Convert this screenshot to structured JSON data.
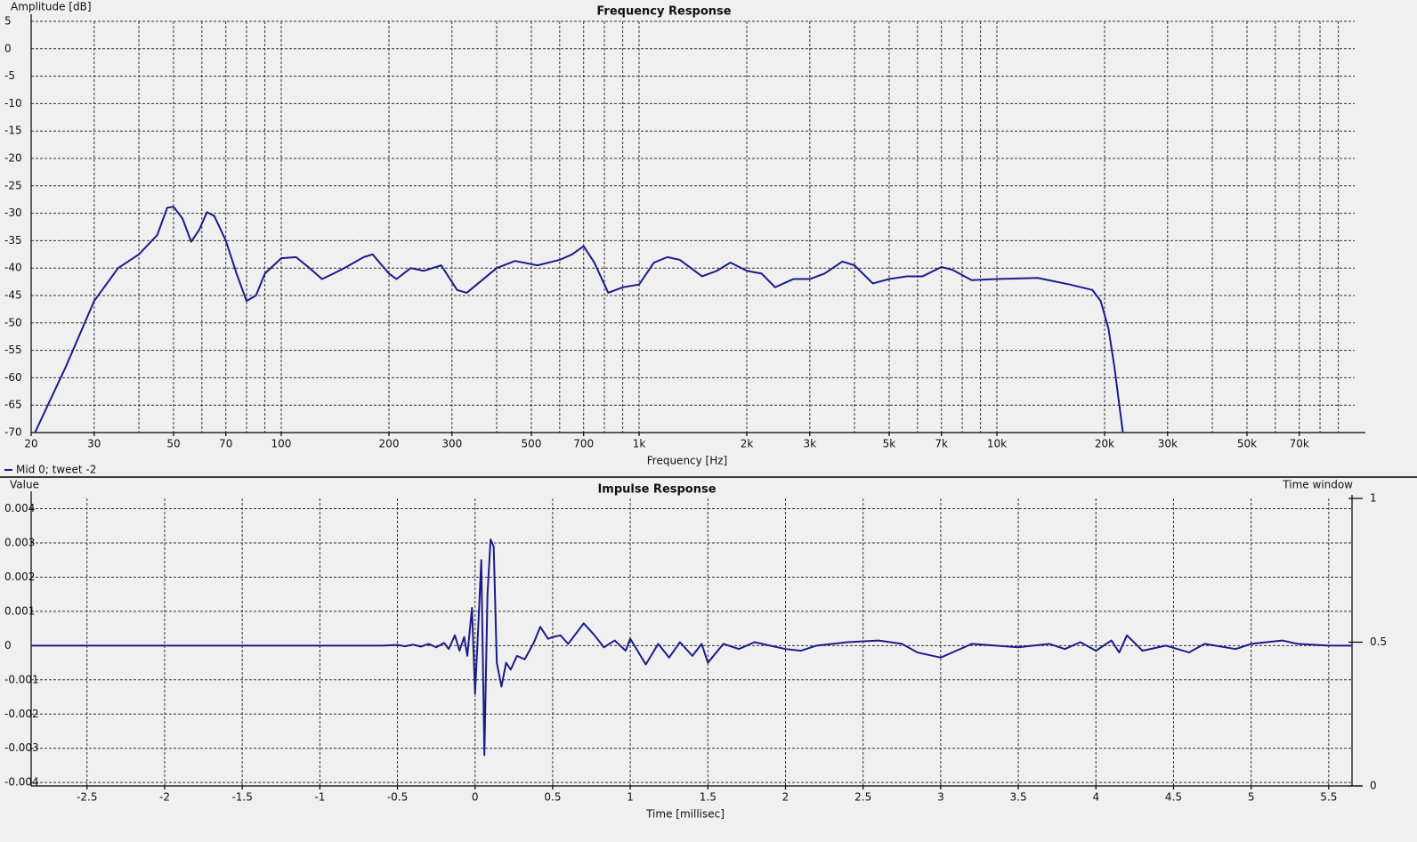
{
  "chart_data": [
    {
      "type": "line",
      "title": "Frequency Response",
      "y_label": "Amplitude [dB]",
      "x_label": "Frequency [Hz]",
      "xscale": "log",
      "grid": true,
      "legend": "bottom-left",
      "xlim": [
        20,
        100000
      ],
      "ylim": [
        -70,
        5
      ],
      "xticks": [
        20,
        30,
        50,
        70,
        100,
        200,
        300,
        500,
        700,
        {
          "value": 1000,
          "label": "1k"
        },
        {
          "value": 2000,
          "label": "2k"
        },
        {
          "value": 3000,
          "label": "3k"
        },
        {
          "value": 5000,
          "label": "5k"
        },
        {
          "value": 7000,
          "label": "7k"
        },
        {
          "value": 10000,
          "label": "10k"
        },
        {
          "value": 20000,
          "label": "20k"
        },
        {
          "value": 30000,
          "label": "30k"
        },
        {
          "value": 50000,
          "label": "50k"
        },
        {
          "value": 70000,
          "label": "70k"
        }
      ],
      "xminorticks": [
        40,
        60,
        80,
        90,
        400,
        600,
        800,
        900,
        4000,
        6000,
        8000,
        9000,
        40000,
        60000,
        80000,
        90000
      ],
      "yticks": [
        5,
        0,
        -5,
        -10,
        -15,
        -20,
        -25,
        -30,
        -35,
        -40,
        -45,
        -50,
        -55,
        -60,
        -65,
        -70
      ],
      "x": [
        20.5,
        25,
        30,
        35,
        40,
        45,
        48,
        50,
        53,
        56,
        59,
        62,
        65,
        70,
        75,
        80,
        85,
        90,
        100,
        110,
        120,
        130,
        140,
        150,
        170,
        180,
        200,
        210,
        230,
        250,
        280,
        310,
        330,
        400,
        450,
        520,
        600,
        650,
        700,
        750,
        820,
        900,
        1000,
        1100,
        1200,
        1300,
        1500,
        1650,
        1800,
        2000,
        2200,
        2400,
        2700,
        3000,
        3300,
        3700,
        4000,
        4500,
        5000,
        5600,
        6200,
        7000,
        7500,
        8500,
        10000,
        13000,
        16000,
        18500,
        19500,
        20500,
        21300,
        22500
      ],
      "series": [
        {
          "name": "Mid 0; tweet -2",
          "color": "#1c1c88",
          "values": [
            -70,
            -58,
            -46,
            -40,
            -37.5,
            -34,
            -29,
            -28.8,
            -31,
            -35.2,
            -33,
            -29.8,
            -30.5,
            -35,
            -41,
            -46,
            -45,
            -41,
            -38.2,
            -38,
            -40,
            -42,
            -41,
            -40,
            -38,
            -37.5,
            -41,
            -42,
            -40,
            -40.5,
            -39.5,
            -44,
            -44.5,
            -40,
            -38.7,
            -39.5,
            -38.5,
            -37.5,
            -36,
            -39,
            -44.5,
            -43.5,
            -43,
            -39,
            -38,
            -38.5,
            -41.5,
            -40.5,
            -39,
            -40.5,
            -41,
            -43.5,
            -42,
            -42,
            -41,
            -38.8,
            -39.5,
            -42.8,
            -42,
            -41.5,
            -41.5,
            -39.8,
            -40.3,
            -42.2,
            -42,
            -41.8,
            -43,
            -44,
            -46,
            -51,
            -58,
            -70
          ]
        }
      ]
    },
    {
      "type": "line",
      "title": "Impulse Response",
      "y_label": "Value",
      "x_label": "Time [millisec]",
      "y2_label": "Time window",
      "grid": true,
      "xlim": [
        -2.86,
        5.65
      ],
      "ylim": [
        -0.0041,
        0.0043
      ],
      "y2lim": [
        0,
        1
      ],
      "xticks": [
        -2.5,
        -2,
        -1.5,
        -1,
        -0.5,
        0,
        0.5,
        1,
        1.5,
        2,
        2.5,
        3,
        3.5,
        4,
        4.5,
        5,
        5.5
      ],
      "yticks": [
        0.004,
        0.003,
        0.002,
        0.001,
        0,
        -0.001,
        -0.002,
        -0.003,
        -0.004
      ],
      "y2ticks": [
        1,
        0.5,
        0
      ],
      "x": [
        -2.86,
        -0.6,
        -0.5,
        -0.45,
        -0.4,
        -0.35,
        -0.3,
        -0.25,
        -0.2,
        -0.17,
        -0.13,
        -0.1,
        -0.07,
        -0.05,
        -0.02,
        0,
        0.02,
        0.04,
        0.06,
        0.08,
        0.1,
        0.12,
        0.14,
        0.17,
        0.2,
        0.23,
        0.27,
        0.32,
        0.38,
        0.42,
        0.47,
        0.5,
        0.55,
        0.6,
        0.7,
        0.77,
        0.83,
        0.9,
        0.97,
        1.0,
        1.1,
        1.18,
        1.25,
        1.32,
        1.4,
        1.46,
        1.5,
        1.6,
        1.7,
        1.8,
        1.9,
        2.0,
        2.1,
        2.2,
        2.4,
        2.6,
        2.75,
        2.85,
        3.0,
        3.1,
        3.2,
        3.5,
        3.7,
        3.8,
        3.9,
        4.0,
        4.1,
        4.15,
        4.2,
        4.3,
        4.45,
        4.6,
        4.7,
        4.9,
        5.0,
        5.2,
        5.3,
        5.5,
        5.65
      ],
      "series": [
        {
          "color": "#1c1c88",
          "values": [
            0,
            0,
            2e-05,
            -2e-05,
            3e-05,
            -3e-05,
            5e-05,
            -5e-05,
            8e-05,
            -0.0001,
            0.0003,
            -0.00015,
            0.00025,
            -0.0003,
            0.0011,
            -0.0014,
            0.0005,
            0.0025,
            -0.0032,
            0.0015,
            0.0031,
            0.0029,
            -0.0005,
            -0.0012,
            -0.0005,
            -0.0007,
            -0.0003,
            -0.0004,
            0.0001,
            0.00055,
            0.0002,
            0.00025,
            0.0003,
            5e-05,
            0.00065,
            0.0003,
            -5e-05,
            0.00015,
            -0.00015,
            0.0002,
            -0.00055,
            5e-05,
            -0.00035,
            0.0001,
            -0.0003,
            5e-05,
            -0.0005,
            5e-05,
            -0.0001,
            0.0001,
            0,
            -0.0001,
            -0.00015,
            0,
            0.0001,
            0.00015,
            5e-05,
            -0.0002,
            -0.00035,
            -0.00015,
            5e-05,
            -5e-05,
            5e-05,
            -0.0001,
            0.0001,
            -0.00015,
            0.00015,
            -0.0002,
            0.0003,
            -0.00015,
            0,
            -0.0002,
            5e-05,
            -0.0001,
            5e-05,
            0.00015,
            5e-05,
            0,
            0
          ]
        }
      ]
    }
  ]
}
